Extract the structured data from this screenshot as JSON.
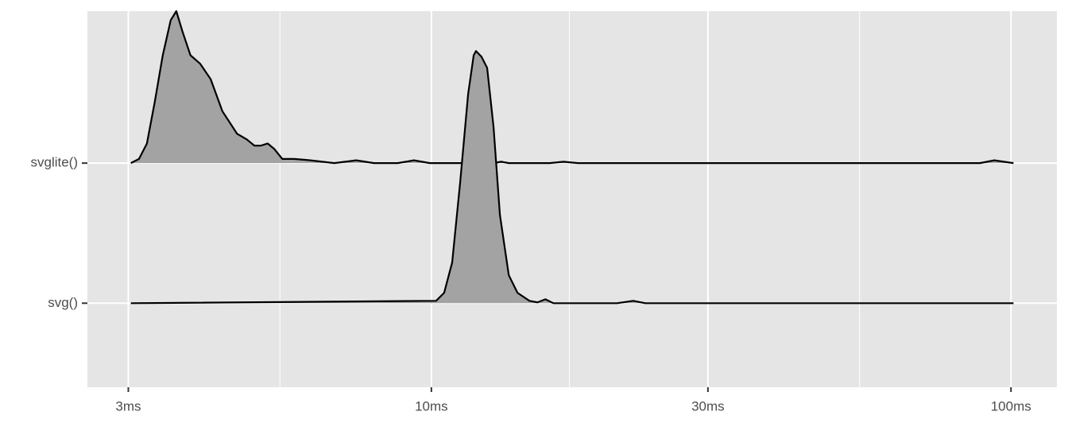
{
  "chart_data": {
    "type": "ridgeline",
    "categories": [
      "svg()",
      "svglite()"
    ],
    "log_x": true,
    "xlim": [
      2.55,
      120
    ],
    "ylim": [
      0.4,
      3.085
    ],
    "xticks": [
      {
        "value": 3,
        "label": "3ms"
      },
      {
        "value": 10,
        "label": "10ms"
      },
      {
        "value": 30,
        "label": "30ms"
      },
      {
        "value": 100,
        "label": "100ms"
      }
    ],
    "xminor": [
      5.48,
      17.3,
      54.8
    ],
    "grid": true,
    "fill_color": "#a3a3a3",
    "line_color": "#000000",
    "ridges": [
      {
        "x": [
          3.03,
          10.19,
          10.52,
          10.86,
          11.21,
          11.57,
          11.83,
          11.94,
          12.2,
          12.48,
          12.8,
          13.13,
          13.6,
          14.08,
          14.76,
          15.24,
          15.73,
          16.24,
          20.9,
          22.3,
          23.4,
          101
        ],
        "values": [
          0,
          0.017,
          0.074,
          0.29,
          0.86,
          1.49,
          1.77,
          1.8,
          1.76,
          1.68,
          1.26,
          0.63,
          0.2,
          0.074,
          0.017,
          0.006,
          0.028,
          0,
          0,
          0.017,
          0,
          0
        ]
      },
      {
        "x": [
          3.03,
          3.13,
          3.23,
          3.33,
          3.44,
          3.55,
          3.63,
          3.72,
          3.84,
          3.99,
          4.16,
          4.36,
          4.62,
          4.8,
          4.95,
          5.08,
          5.22,
          5.36,
          5.53,
          5.8,
          6.18,
          6.8,
          7.42,
          7.96,
          8.75,
          9.33,
          9.94,
          12.8,
          13.2,
          13.6,
          16.0,
          16.9,
          17.9,
          88.4,
          93.6,
          101
        ],
        "values": [
          0,
          0.03,
          0.14,
          0.43,
          0.77,
          1.02,
          1.085,
          0.94,
          0.77,
          0.71,
          0.6,
          0.37,
          0.21,
          0.17,
          0.125,
          0.125,
          0.14,
          0.1,
          0.03,
          0.03,
          0.02,
          0,
          0.02,
          0,
          0,
          0.02,
          0,
          0,
          0.01,
          0,
          0,
          0.01,
          0,
          0,
          0.02,
          0
        ]
      }
    ]
  }
}
